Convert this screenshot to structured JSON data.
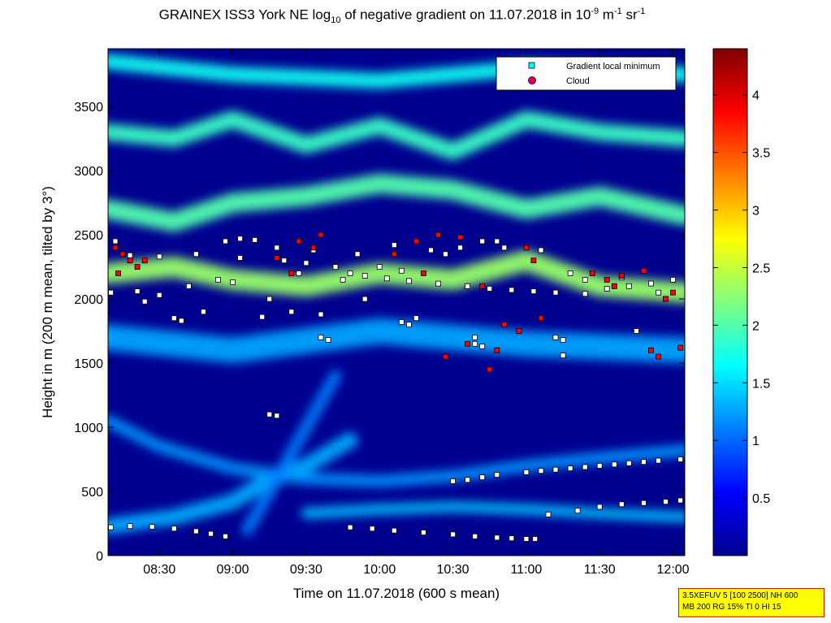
{
  "chart_data": {
    "type": "heatmap",
    "title_parts": {
      "pre": "GRAINEX ISS3 York NE log",
      "sub": "10",
      "mid": " of negative gradient on 11.07.2018 in 10",
      "sup1": "-9",
      "mid2": " m",
      "sup2": "-1",
      "mid3": " sr",
      "sup3": "-1"
    },
    "xlabel": "Time on 11.07.2018 (600 s mean)",
    "ylabel": "Height in m (200 m mean, tilted by 3°)",
    "xlim_hours": [
      8.15,
      12.08
    ],
    "ylim": [
      0,
      3950
    ],
    "x_ticks": [
      {
        "value": 8.5,
        "label": "08:30"
      },
      {
        "value": 9.0,
        "label": "09:00"
      },
      {
        "value": 9.5,
        "label": "09:30"
      },
      {
        "value": 10.0,
        "label": "10:00"
      },
      {
        "value": 10.5,
        "label": "10:30"
      },
      {
        "value": 11.0,
        "label": "11:00"
      },
      {
        "value": 11.5,
        "label": "11:30"
      },
      {
        "value": 12.0,
        "label": "12:00"
      }
    ],
    "y_ticks": [
      {
        "value": 0,
        "label": "0"
      },
      {
        "value": 500,
        "label": "500"
      },
      {
        "value": 1000,
        "label": "1000"
      },
      {
        "value": 1500,
        "label": "1500"
      },
      {
        "value": 2000,
        "label": "2000"
      },
      {
        "value": 2500,
        "label": "2500"
      },
      {
        "value": 3000,
        "label": "3000"
      },
      {
        "value": 3500,
        "label": "3500"
      }
    ],
    "colorbar": {
      "clim": [
        0,
        4.4
      ],
      "ticks": [
        {
          "value": 0.5,
          "label": "0.5"
        },
        {
          "value": 1,
          "label": "1"
        },
        {
          "value": 1.5,
          "label": "1.5"
        },
        {
          "value": 2,
          "label": "2"
        },
        {
          "value": 2.5,
          "label": "2.5"
        },
        {
          "value": 3,
          "label": "3"
        },
        {
          "value": 3.5,
          "label": "3.5"
        },
        {
          "value": 4,
          "label": "4"
        }
      ],
      "colors": [
        "#00008f",
        "#0000ff",
        "#00ffff",
        "#ffff00",
        "#ff0000",
        "#800000"
      ]
    },
    "legend": {
      "placement": "top-right",
      "items": [
        {
          "label": "Gradient local minimum",
          "color": "#00ffff",
          "marker": "square"
        },
        {
          "label": "Cloud",
          "color": "#ff0000",
          "marker": "circle"
        }
      ]
    },
    "bands": [
      {
        "x": [
          8.15,
          8.6,
          9.0,
          9.2,
          9.5,
          9.8
        ],
        "y": [
          230,
          300,
          420,
          560,
          700,
          900
        ],
        "width": 120,
        "level": 1.3
      },
      {
        "x": [
          8.15,
          8.5,
          9.0,
          9.5,
          10.0,
          10.5,
          11.0,
          11.5,
          12.08
        ],
        "y": [
          1050,
          850,
          680,
          600,
          580,
          620,
          700,
          760,
          820
        ],
        "width": 90,
        "level": 1.2
      },
      {
        "x": [
          9.5,
          10.0,
          10.5,
          11.0,
          11.5,
          12.08
        ],
        "y": [
          330,
          360,
          380,
          360,
          330,
          300
        ],
        "width": 80,
        "level": 1.4
      },
      {
        "x": [
          9.1,
          9.3,
          9.5,
          9.7
        ],
        "y": [
          200,
          600,
          1000,
          1400
        ],
        "width": 90,
        "level": 1.1
      },
      {
        "x": [
          8.15,
          9.0,
          10.0,
          11.0,
          12.08
        ],
        "y": [
          1700,
          1600,
          1750,
          1650,
          1600
        ],
        "width": 200,
        "level": 1.25
      },
      {
        "x": [
          8.15,
          8.6,
          9.0,
          9.5,
          10.0,
          10.5,
          11.0,
          11.5,
          12.08
        ],
        "y": [
          2200,
          2250,
          2150,
          2100,
          2200,
          2150,
          2300,
          2100,
          2050
        ],
        "width": 160,
        "level": 2.3
      },
      {
        "x": [
          8.15,
          8.6,
          9.0,
          9.5,
          10.0,
          10.5,
          11.0,
          11.5,
          12.08
        ],
        "y": [
          2700,
          2600,
          2750,
          2800,
          2900,
          2850,
          2700,
          2800,
          2650
        ],
        "width": 150,
        "level": 2.0
      },
      {
        "x": [
          8.15,
          8.6,
          9.0,
          9.5,
          10.0,
          10.5,
          11.0,
          11.5,
          12.08
        ],
        "y": [
          3300,
          3250,
          3400,
          3200,
          3350,
          3150,
          3400,
          3300,
          3250
        ],
        "width": 130,
        "level": 1.9
      },
      {
        "x": [
          8.15,
          9.0,
          10.0,
          11.0,
          12.08
        ],
        "y": [
          3850,
          3750,
          3700,
          3800,
          3750
        ],
        "width": 120,
        "level": 1.7
      }
    ],
    "series": [
      {
        "name": "Gradient local minimum",
        "marker": "square",
        "x": [
          8.17,
          8.3,
          8.45,
          8.6,
          8.75,
          8.85,
          8.95,
          9.8,
          9.95,
          10.1,
          10.3,
          10.5,
          10.65,
          10.8,
          10.9,
          11.0,
          11.06,
          11.15,
          11.35,
          11.5,
          11.65,
          11.8,
          11.95,
          12.05,
          8.17,
          8.35,
          8.5,
          8.7,
          8.9,
          9.0,
          9.25,
          9.4,
          9.6,
          9.75,
          9.9,
          10.05,
          10.2,
          10.4,
          10.6,
          10.75,
          10.9,
          11.05,
          11.2,
          11.4,
          11.55,
          11.7,
          11.85,
          12.0,
          8.3,
          8.5,
          8.75,
          9.05,
          9.3,
          9.55,
          9.8,
          10.0,
          10.15,
          10.45,
          10.7,
          10.85,
          11.3,
          11.65,
          11.95,
          10.5,
          10.6,
          10.7,
          10.8,
          11.0,
          11.1,
          11.2,
          11.3,
          11.4,
          11.5,
          11.6,
          11.7,
          11.8,
          11.9,
          12.05,
          9.6,
          9.65,
          9.25,
          9.3,
          10.15,
          10.2,
          11.2,
          11.25,
          8.6,
          8.65,
          10.65,
          10.7,
          8.95,
          9.05,
          9.15,
          9.35,
          9.5,
          9.7,
          9.85,
          10.1,
          10.35,
          10.55,
          10.8,
          11.1,
          11.4,
          11.6,
          11.9,
          8.2,
          8.4,
          8.8,
          9.2,
          9.45,
          9.9,
          10.25,
          10.65,
          11.25,
          11.75
        ],
        "y": [
          220,
          230,
          225,
          210,
          190,
          170,
          150,
          220,
          210,
          195,
          180,
          165,
          150,
          140,
          135,
          130,
          130,
          320,
          350,
          380,
          400,
          410,
          420,
          430,
          2050,
          2060,
          2030,
          2100,
          2150,
          2130,
          2000,
          1900,
          1880,
          2150,
          2180,
          2160,
          2140,
          2120,
          2100,
          2080,
          2070,
          2060,
          2050,
          2040,
          2080,
          2100,
          2120,
          2150,
          2340,
          2330,
          2350,
          2320,
          2400,
          2380,
          2200,
          2250,
          2220,
          2350,
          2450,
          2400,
          2200,
          2170,
          2000,
          580,
          590,
          610,
          630,
          650,
          660,
          670,
          680,
          690,
          700,
          710,
          720,
          730,
          740,
          750,
          1700,
          1680,
          1100,
          1090,
          1820,
          1800,
          1700,
          1680,
          1850,
          1830,
          1650,
          1630,
          2450,
          2470,
          2460,
          2300,
          2280,
          2250,
          2350,
          2420,
          2380,
          2400,
          2450,
          2380,
          2150,
          2100,
          2050,
          2450,
          1980,
          1900,
          1860,
          2200,
          2000,
          1850,
          1700,
          1560,
          1750
        ]
      },
      {
        "name": "Cloud",
        "marker": "circle",
        "x": [
          8.2,
          8.25,
          8.3,
          8.35,
          9.3,
          9.45,
          9.6,
          10.1,
          10.25,
          10.4,
          10.55,
          10.7,
          10.8,
          10.95,
          11.1,
          11.45,
          11.55,
          11.65,
          11.8,
          11.95,
          12.05,
          8.22,
          8.4,
          9.4,
          9.55,
          10.3,
          10.45,
          10.6,
          10.75,
          10.85,
          11.0,
          11.05,
          11.6,
          11.85,
          11.9,
          12.0
        ],
        "y": [
          2400,
          2350,
          2300,
          2250,
          2320,
          2450,
          2500,
          2350,
          2450,
          2500,
          2480,
          2100,
          1600,
          1750,
          1850,
          2200,
          2150,
          2180,
          2220,
          2000,
          1620,
          2200,
          2300,
          2200,
          2400,
          2200,
          1550,
          1650,
          1450,
          1800,
          2400,
          2300,
          2100,
          1600,
          1550,
          2050
        ]
      }
    ]
  },
  "infobox": {
    "line1": "3.5XEFUV 5 [100 2500] NH 600",
    "line2": "MB 200 RG 15% TI 0 HI 15"
  }
}
